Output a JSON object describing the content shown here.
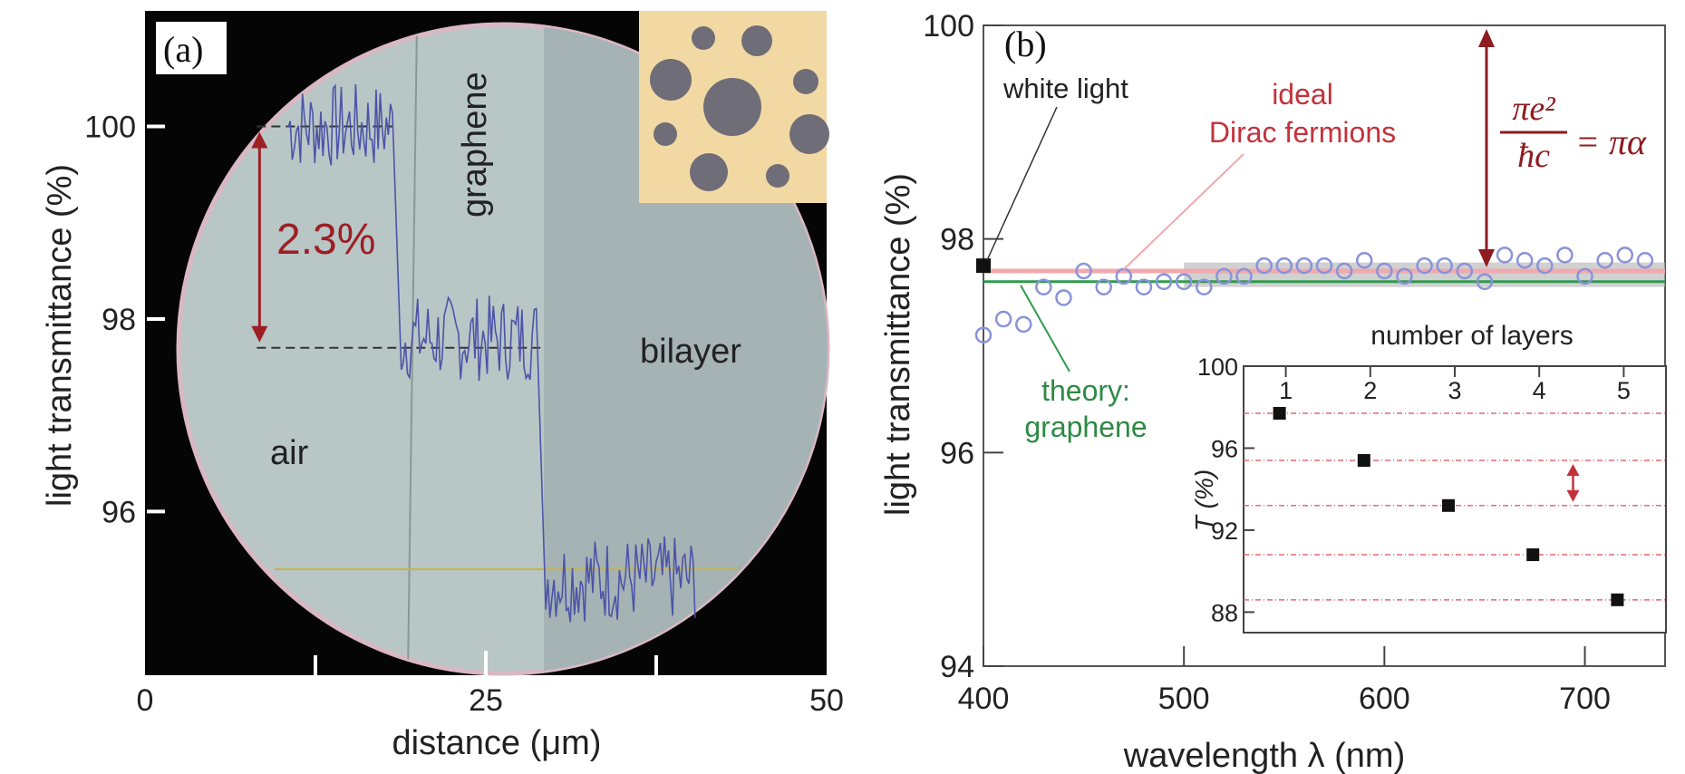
{
  "colors": {
    "background_dark": "#050505",
    "sample_disk": "#b9c6c6",
    "sample_disk_right": "#a6b3b4",
    "trace": "#4c54a8",
    "annotation_red": "#9c1f24",
    "inset_bg": "#f2d9a3",
    "inset_holes": "#6f6d78",
    "ideal_line": "#f0a9ae",
    "theory_line": "#2f9a4e",
    "band": "#b8b8b8",
    "points": "#8a93d8"
  },
  "chart_data": [
    {
      "type": "line",
      "panel_label": "(a)",
      "xlabel": "distance (μm)",
      "ylabel": "light transmittance (%)",
      "xlim": [
        0,
        50
      ],
      "ylim": [
        94.3,
        101.2
      ],
      "x_ticks": [
        0,
        25,
        50
      ],
      "y_ticks": [
        96,
        98,
        100
      ],
      "image_labels": [
        "graphene",
        "bilayer",
        "air"
      ],
      "annotation": "2.3%",
      "profile_levels": [
        {
          "x_start": 10.5,
          "x_end": 18.2,
          "y": 100.0
        },
        {
          "x_start": 18.8,
          "x_end": 28.7,
          "y": 97.8
        },
        {
          "x_start": 29.4,
          "x_end": 40.4,
          "y": 95.3
        }
      ],
      "reference_lines": [
        100.0,
        97.7,
        95.4
      ]
    },
    {
      "type": "scatter",
      "panel_label": "(b)",
      "xlabel": "wavelength λ (nm)",
      "ylabel": "light transmittance (%)",
      "xlim": [
        400,
        740
      ],
      "ylim": [
        94,
        100
      ],
      "x_ticks": [
        400,
        500,
        600,
        700
      ],
      "y_ticks": [
        94,
        96,
        98,
        100
      ],
      "annotations": {
        "white_light": "white light",
        "ideal_1": "ideal",
        "ideal_2": "Dirac fermions",
        "theory_1": "theory:",
        "theory_2": "graphene",
        "formula_num": "πe²",
        "formula_den": "ħc",
        "formula_rhs": "= πα"
      },
      "white_light_point": {
        "x": 400,
        "y": 97.75
      },
      "ideal_y": 97.7,
      "theory_y": 97.6,
      "points": [
        {
          "x": 400,
          "y": 97.1
        },
        {
          "x": 410,
          "y": 97.25
        },
        {
          "x": 420,
          "y": 97.2
        },
        {
          "x": 430,
          "y": 97.55
        },
        {
          "x": 440,
          "y": 97.45
        },
        {
          "x": 450,
          "y": 97.7
        },
        {
          "x": 460,
          "y": 97.55
        },
        {
          "x": 470,
          "y": 97.65
        },
        {
          "x": 480,
          "y": 97.55
        },
        {
          "x": 490,
          "y": 97.6
        },
        {
          "x": 500,
          "y": 97.6
        },
        {
          "x": 510,
          "y": 97.55
        },
        {
          "x": 520,
          "y": 97.65
        },
        {
          "x": 530,
          "y": 97.65
        },
        {
          "x": 540,
          "y": 97.75
        },
        {
          "x": 550,
          "y": 97.75
        },
        {
          "x": 560,
          "y": 97.75
        },
        {
          "x": 570,
          "y": 97.75
        },
        {
          "x": 580,
          "y": 97.7
        },
        {
          "x": 590,
          "y": 97.8
        },
        {
          "x": 600,
          "y": 97.7
        },
        {
          "x": 610,
          "y": 97.65
        },
        {
          "x": 620,
          "y": 97.75
        },
        {
          "x": 630,
          "y": 97.75
        },
        {
          "x": 640,
          "y": 97.7
        },
        {
          "x": 650,
          "y": 97.6
        },
        {
          "x": 660,
          "y": 97.85
        },
        {
          "x": 670,
          "y": 97.8
        },
        {
          "x": 680,
          "y": 97.75
        },
        {
          "x": 690,
          "y": 97.85
        },
        {
          "x": 700,
          "y": 97.65
        },
        {
          "x": 710,
          "y": 97.8
        },
        {
          "x": 720,
          "y": 97.85
        },
        {
          "x": 730,
          "y": 97.8
        }
      ]
    },
    {
      "type": "scatter",
      "xlabel": "number of layers",
      "ylabel": "T (%)",
      "xlim": [
        0.5,
        5.5
      ],
      "ylim": [
        87,
        100
      ],
      "x_ticks": [
        1,
        2,
        3,
        4,
        5
      ],
      "y_ticks": [
        88,
        92,
        96,
        100
      ],
      "categories": [
        1,
        2,
        3,
        4,
        5
      ],
      "values": [
        97.7,
        95.4,
        93.2,
        90.8,
        88.6
      ]
    }
  ]
}
